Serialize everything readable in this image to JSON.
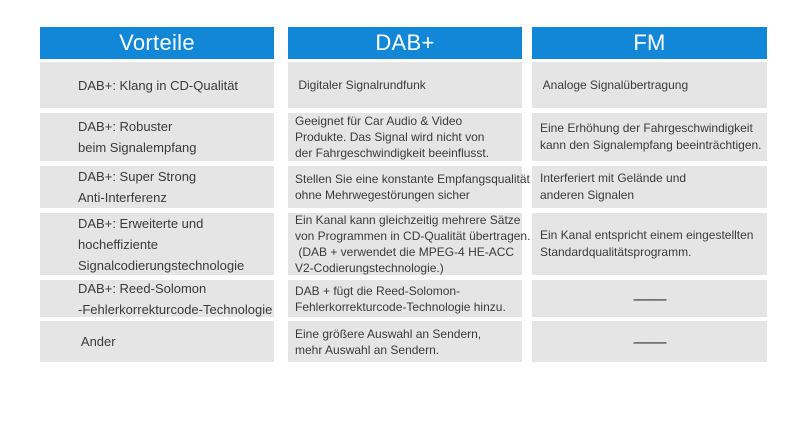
{
  "colors": {
    "header_bg": "#1287d8",
    "header_text": "#ffffff",
    "row_bg": "#e5e5e5",
    "text": "#3a3a3a"
  },
  "columns": [
    {
      "header": "Vorteile",
      "rows": [
        "DAB+: Klang in CD-Qualität",
        "DAB+: Robuster\nbeim Signalempfang",
        "DAB+: Super Strong\nAnti-Interferenz",
        "DAB+: Erweiterte und\nhocheffiziente\nSignalcodierungstechnologie",
        "DAB+: Reed-Solomon\n-Fehlerkorrekturcode-Technologie",
        " Ander"
      ]
    },
    {
      "header": "DAB+",
      "rows": [
        " Digitaler Signalrundfunk",
        "Geeignet für Car Audio & Video\nProdukte. Das Signal wird nicht von\nder Fahrgeschwindigkeit beeinflusst.",
        "Stellen Sie eine konstante Empfangsqualität\nohne Mehrwegestörungen sicher",
        "Ein Kanal kann gleichzeitig mehrere Sätze\nvon Programmen in CD-Qualität übertragen.\n (DAB + verwendet die MPEG-4 HE-ACC\nV2-Codierungstechnologie.)",
        "DAB + fügt die Reed-Solomon-\nFehlerkorrekturcode-Technologie hinzu.",
        "Eine größere Auswahl an Sendern,\nmehr Auswahl an Sendern."
      ]
    },
    {
      "header": "FM",
      "rows": [
        " Analoge Signalübertragung",
        "Eine Erhöhung der Fahrgeschwindigkeit\nkann den Signalempfang beeinträchtigen.",
        "Interferiert mit Gelände und\nanderen Signalen",
        "Ein Kanal entspricht einem eingestellten\nStandardqualitätsprogramm.",
        "——",
        "——"
      ]
    }
  ]
}
